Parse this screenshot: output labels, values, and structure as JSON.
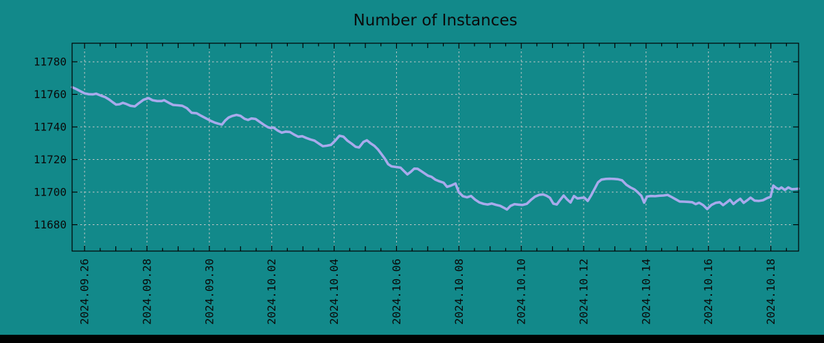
{
  "page": {
    "background": "#12898a",
    "bottom_bar_color": "#010101",
    "text_color": "#0a0a0a"
  },
  "chart_data": {
    "type": "line",
    "title": "Number of Instances",
    "grid": {
      "style": "dashed",
      "color": "#c9c9c9",
      "visible": true
    },
    "x_axis": {
      "range_days": [
        -0.4,
        22.89
      ],
      "tick_positions_days": [
        0,
        2,
        4,
        6,
        8,
        10,
        12,
        14,
        16,
        18,
        20,
        22
      ],
      "tick_labels": [
        "2024.09.26",
        "2024.09.28",
        "2024.09.30",
        "2024.10.02",
        "2024.10.04",
        "2024.10.06",
        "2024.10.08",
        "2024.10.10",
        "2024.10.12",
        "2024.10.14",
        "2024.10.16",
        "2024.10.18"
      ],
      "minor_tick_interval_days": 0.5
    },
    "y_axis": {
      "range": [
        11663.8,
        11791.4
      ],
      "ticks": [
        11680,
        11700,
        11720,
        11740,
        11760,
        11780
      ]
    },
    "series": [
      {
        "name": "instances",
        "color": "#a8aaec",
        "points": [
          [
            -0.4,
            11764.4
          ],
          [
            -0.26,
            11763.2
          ],
          [
            -0.13,
            11761.9
          ],
          [
            0.0,
            11760.6
          ],
          [
            0.13,
            11760.1
          ],
          [
            0.26,
            11760.0
          ],
          [
            0.37,
            11760.4
          ],
          [
            0.53,
            11759.2
          ],
          [
            0.66,
            11758.3
          ],
          [
            0.79,
            11756.8
          ],
          [
            0.9,
            11755.2
          ],
          [
            1.01,
            11753.7
          ],
          [
            1.12,
            11753.9
          ],
          [
            1.23,
            11754.8
          ],
          [
            1.34,
            11754.1
          ],
          [
            1.47,
            11753.0
          ],
          [
            1.61,
            11752.6
          ],
          [
            1.74,
            11754.6
          ],
          [
            1.89,
            11756.7
          ],
          [
            2.05,
            11757.7
          ],
          [
            2.18,
            11756.4
          ],
          [
            2.33,
            11755.9
          ],
          [
            2.47,
            11755.9
          ],
          [
            2.55,
            11756.4
          ],
          [
            2.71,
            11754.7
          ],
          [
            2.84,
            11753.5
          ],
          [
            2.99,
            11753.3
          ],
          [
            3.13,
            11753.0
          ],
          [
            3.28,
            11751.5
          ],
          [
            3.43,
            11748.7
          ],
          [
            3.59,
            11748.4
          ],
          [
            3.74,
            11746.8
          ],
          [
            3.9,
            11745.2
          ],
          [
            4.05,
            11743.7
          ],
          [
            4.18,
            11742.6
          ],
          [
            4.29,
            11742.0
          ],
          [
            4.4,
            11741.4
          ],
          [
            4.51,
            11744.0
          ],
          [
            4.62,
            11745.8
          ],
          [
            4.73,
            11746.7
          ],
          [
            4.87,
            11747.4
          ],
          [
            5.0,
            11746.8
          ],
          [
            5.13,
            11745.0
          ],
          [
            5.24,
            11744.3
          ],
          [
            5.35,
            11745.2
          ],
          [
            5.48,
            11744.9
          ],
          [
            5.61,
            11743.2
          ],
          [
            5.75,
            11741.3
          ],
          [
            5.88,
            11739.8
          ],
          [
            5.97,
            11739.3
          ],
          [
            6.05,
            11739.7
          ],
          [
            6.19,
            11737.8
          ],
          [
            6.32,
            11736.5
          ],
          [
            6.45,
            11737.1
          ],
          [
            6.58,
            11736.9
          ],
          [
            6.71,
            11735.4
          ],
          [
            6.85,
            11734.0
          ],
          [
            6.98,
            11734.3
          ],
          [
            7.11,
            11733.2
          ],
          [
            7.24,
            11732.3
          ],
          [
            7.37,
            11731.6
          ],
          [
            7.51,
            11729.8
          ],
          [
            7.64,
            11728.2
          ],
          [
            7.77,
            11728.5
          ],
          [
            7.9,
            11729.0
          ],
          [
            8.03,
            11731.5
          ],
          [
            8.17,
            11734.6
          ],
          [
            8.3,
            11734.0
          ],
          [
            8.43,
            11731.5
          ],
          [
            8.56,
            11729.8
          ],
          [
            8.69,
            11727.8
          ],
          [
            8.8,
            11727.4
          ],
          [
            8.94,
            11730.8
          ],
          [
            9.05,
            11731.8
          ],
          [
            9.18,
            11729.8
          ],
          [
            9.29,
            11728.4
          ],
          [
            9.4,
            11726.3
          ],
          [
            9.51,
            11723.5
          ],
          [
            9.62,
            11720.7
          ],
          [
            9.73,
            11717.2
          ],
          [
            9.84,
            11715.8
          ],
          [
            9.99,
            11715.4
          ],
          [
            10.13,
            11715.0
          ],
          [
            10.24,
            11712.9
          ],
          [
            10.35,
            11710.9
          ],
          [
            10.46,
            11712.5
          ],
          [
            10.57,
            11714.4
          ],
          [
            10.68,
            11714.3
          ],
          [
            10.79,
            11712.9
          ],
          [
            10.9,
            11711.5
          ],
          [
            11.01,
            11710.1
          ],
          [
            11.12,
            11709.4
          ],
          [
            11.25,
            11707.6
          ],
          [
            11.38,
            11706.6
          ],
          [
            11.51,
            11705.8
          ],
          [
            11.62,
            11703.2
          ],
          [
            11.75,
            11704.0
          ],
          [
            11.89,
            11705.3
          ],
          [
            12.0,
            11699.8
          ],
          [
            12.13,
            11697.5
          ],
          [
            12.26,
            11696.8
          ],
          [
            12.39,
            11697.6
          ],
          [
            12.52,
            11695.4
          ],
          [
            12.66,
            11693.6
          ],
          [
            12.79,
            11692.8
          ],
          [
            12.92,
            11692.4
          ],
          [
            13.05,
            11693.0
          ],
          [
            13.19,
            11692.2
          ],
          [
            13.32,
            11691.6
          ],
          [
            13.43,
            11690.5
          ],
          [
            13.54,
            11689.3
          ],
          [
            13.65,
            11691.5
          ],
          [
            13.78,
            11692.6
          ],
          [
            13.91,
            11692.3
          ],
          [
            14.04,
            11692.1
          ],
          [
            14.18,
            11692.8
          ],
          [
            14.31,
            11695.2
          ],
          [
            14.44,
            11697.2
          ],
          [
            14.57,
            11698.3
          ],
          [
            14.7,
            11698.6
          ],
          [
            14.81,
            11697.8
          ],
          [
            14.92,
            11696.5
          ],
          [
            15.03,
            11692.9
          ],
          [
            15.14,
            11692.4
          ],
          [
            15.25,
            11695.3
          ],
          [
            15.36,
            11697.9
          ],
          [
            15.47,
            11695.5
          ],
          [
            15.58,
            11693.6
          ],
          [
            15.69,
            11697.6
          ],
          [
            15.8,
            11696.1
          ],
          [
            15.91,
            11696.4
          ],
          [
            16.02,
            11696.6
          ],
          [
            16.13,
            11694.6
          ],
          [
            16.24,
            11698.0
          ],
          [
            16.35,
            11702.0
          ],
          [
            16.46,
            11706.0
          ],
          [
            16.57,
            11707.7
          ],
          [
            16.71,
            11708.1
          ],
          [
            16.84,
            11708.2
          ],
          [
            16.97,
            11708.1
          ],
          [
            17.1,
            11707.9
          ],
          [
            17.23,
            11707.2
          ],
          [
            17.37,
            11704.5
          ],
          [
            17.5,
            11702.9
          ],
          [
            17.63,
            11701.6
          ],
          [
            17.74,
            11699.8
          ],
          [
            17.85,
            11697.7
          ],
          [
            17.94,
            11693.5
          ],
          [
            18.03,
            11697.3
          ],
          [
            18.16,
            11697.6
          ],
          [
            18.29,
            11697.5
          ],
          [
            18.42,
            11697.8
          ],
          [
            18.56,
            11697.9
          ],
          [
            18.69,
            11698.3
          ],
          [
            18.82,
            11697.0
          ],
          [
            18.95,
            11695.6
          ],
          [
            19.08,
            11694.2
          ],
          [
            19.22,
            11694.1
          ],
          [
            19.35,
            11694.0
          ],
          [
            19.48,
            11693.8
          ],
          [
            19.59,
            11692.6
          ],
          [
            19.7,
            11693.5
          ],
          [
            19.83,
            11692.0
          ],
          [
            19.96,
            11689.6
          ],
          [
            20.1,
            11692.2
          ],
          [
            20.23,
            11693.4
          ],
          [
            20.36,
            11693.8
          ],
          [
            20.47,
            11692.0
          ],
          [
            20.58,
            11693.6
          ],
          [
            20.69,
            11695.3
          ],
          [
            20.8,
            11692.7
          ],
          [
            20.91,
            11694.5
          ],
          [
            21.02,
            11695.9
          ],
          [
            21.13,
            11693.4
          ],
          [
            21.24,
            11694.9
          ],
          [
            21.35,
            11696.6
          ],
          [
            21.48,
            11694.8
          ],
          [
            21.62,
            11694.6
          ],
          [
            21.75,
            11695.0
          ],
          [
            21.88,
            11696.3
          ],
          [
            21.99,
            11697.1
          ],
          [
            22.08,
            11704.0
          ],
          [
            22.17,
            11702.6
          ],
          [
            22.26,
            11701.8
          ],
          [
            22.34,
            11702.9
          ],
          [
            22.45,
            11701.3
          ],
          [
            22.56,
            11702.9
          ],
          [
            22.67,
            11701.8
          ],
          [
            22.78,
            11701.9
          ],
          [
            22.89,
            11702.1
          ]
        ]
      }
    ]
  }
}
